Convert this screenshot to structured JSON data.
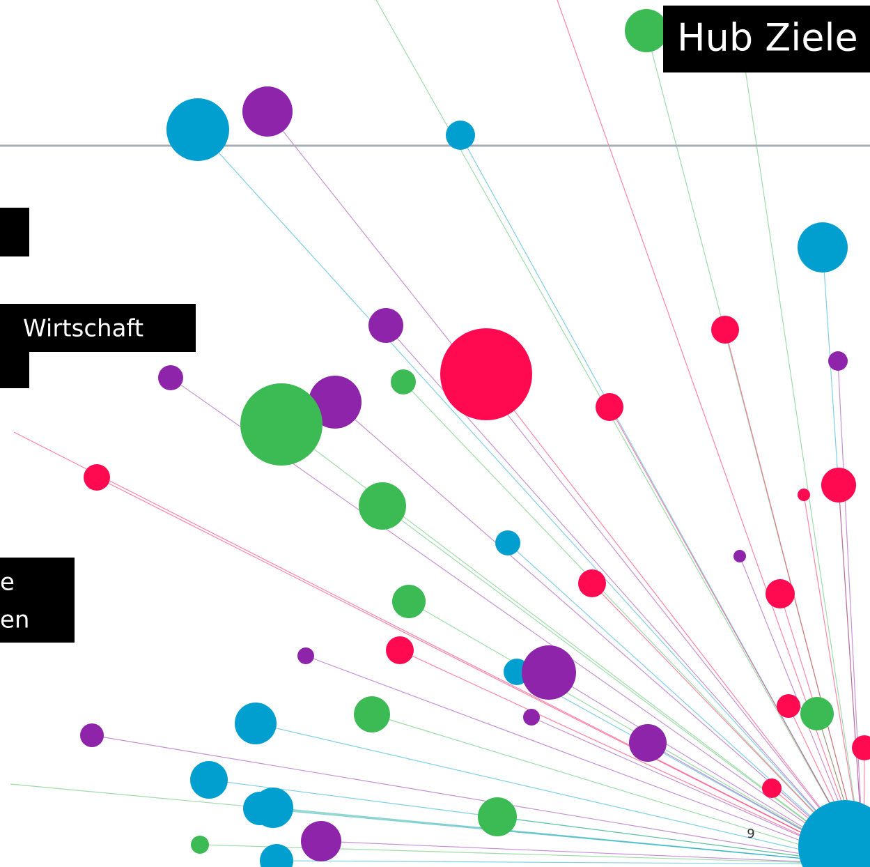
{
  "slide": {
    "title": "Hub Ziele",
    "box_text": "Wirtschaft",
    "box_lines": [
      "e",
      "en"
    ],
    "page_number": 9
  }
}
